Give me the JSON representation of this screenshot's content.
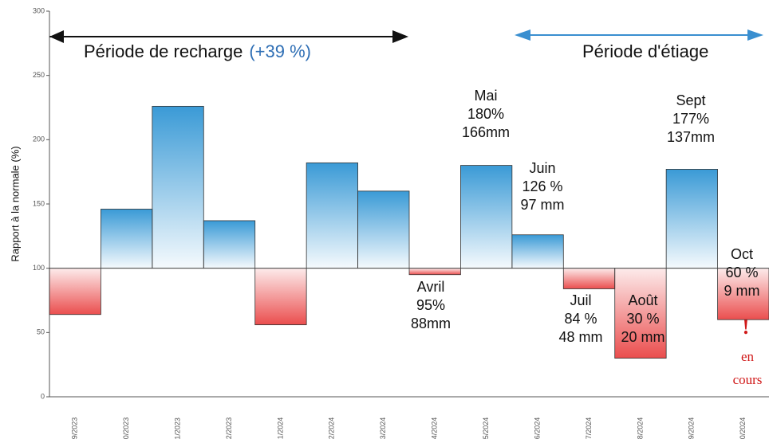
{
  "chart_data": {
    "type": "bar",
    "categories": [
      "09/2023",
      "10/2023",
      "11/2023",
      "12/2023",
      "01/2024",
      "02/2024",
      "03/2024",
      "04/2024",
      "05/2024",
      "06/2024",
      "07/2024",
      "08/2024",
      "09/2024",
      "10/2024"
    ],
    "values": [
      64,
      146,
      226,
      137,
      56,
      182,
      160,
      95,
      180,
      126,
      84,
      30,
      177,
      60
    ],
    "baseline": 100,
    "ylim": [
      0,
      300
    ],
    "yticks": [
      0,
      50,
      100,
      150,
      200,
      250,
      300
    ],
    "y_label": "Rapport à la normale (%)",
    "above_color": "#3a9ad6",
    "below_color": "#e83a3a",
    "periods": [
      {
        "text": "Période de recharge",
        "note": "(+39 %)"
      },
      {
        "text": "Période d'étiage"
      }
    ],
    "annotations": [
      {
        "category": 7,
        "lines": [
          "Avril",
          "95%",
          "88mm"
        ]
      },
      {
        "category": 8,
        "lines": [
          "Mai",
          "180%",
          "166mm"
        ]
      },
      {
        "category": 9,
        "lines": [
          "Juin",
          "126 %",
          "97 mm"
        ]
      },
      {
        "category": 10,
        "lines": [
          "Juil",
          "84 %",
          "48 mm"
        ]
      },
      {
        "category": 11,
        "lines": [
          "Août",
          "30 %",
          "20 mm"
        ]
      },
      {
        "category": 12,
        "lines": [
          "Sept",
          "177%",
          "137mm"
        ]
      },
      {
        "category": 13,
        "lines": [
          "Oct",
          "60 %",
          "9 mm"
        ]
      }
    ],
    "status": [
      "!",
      "en",
      "cours"
    ]
  }
}
